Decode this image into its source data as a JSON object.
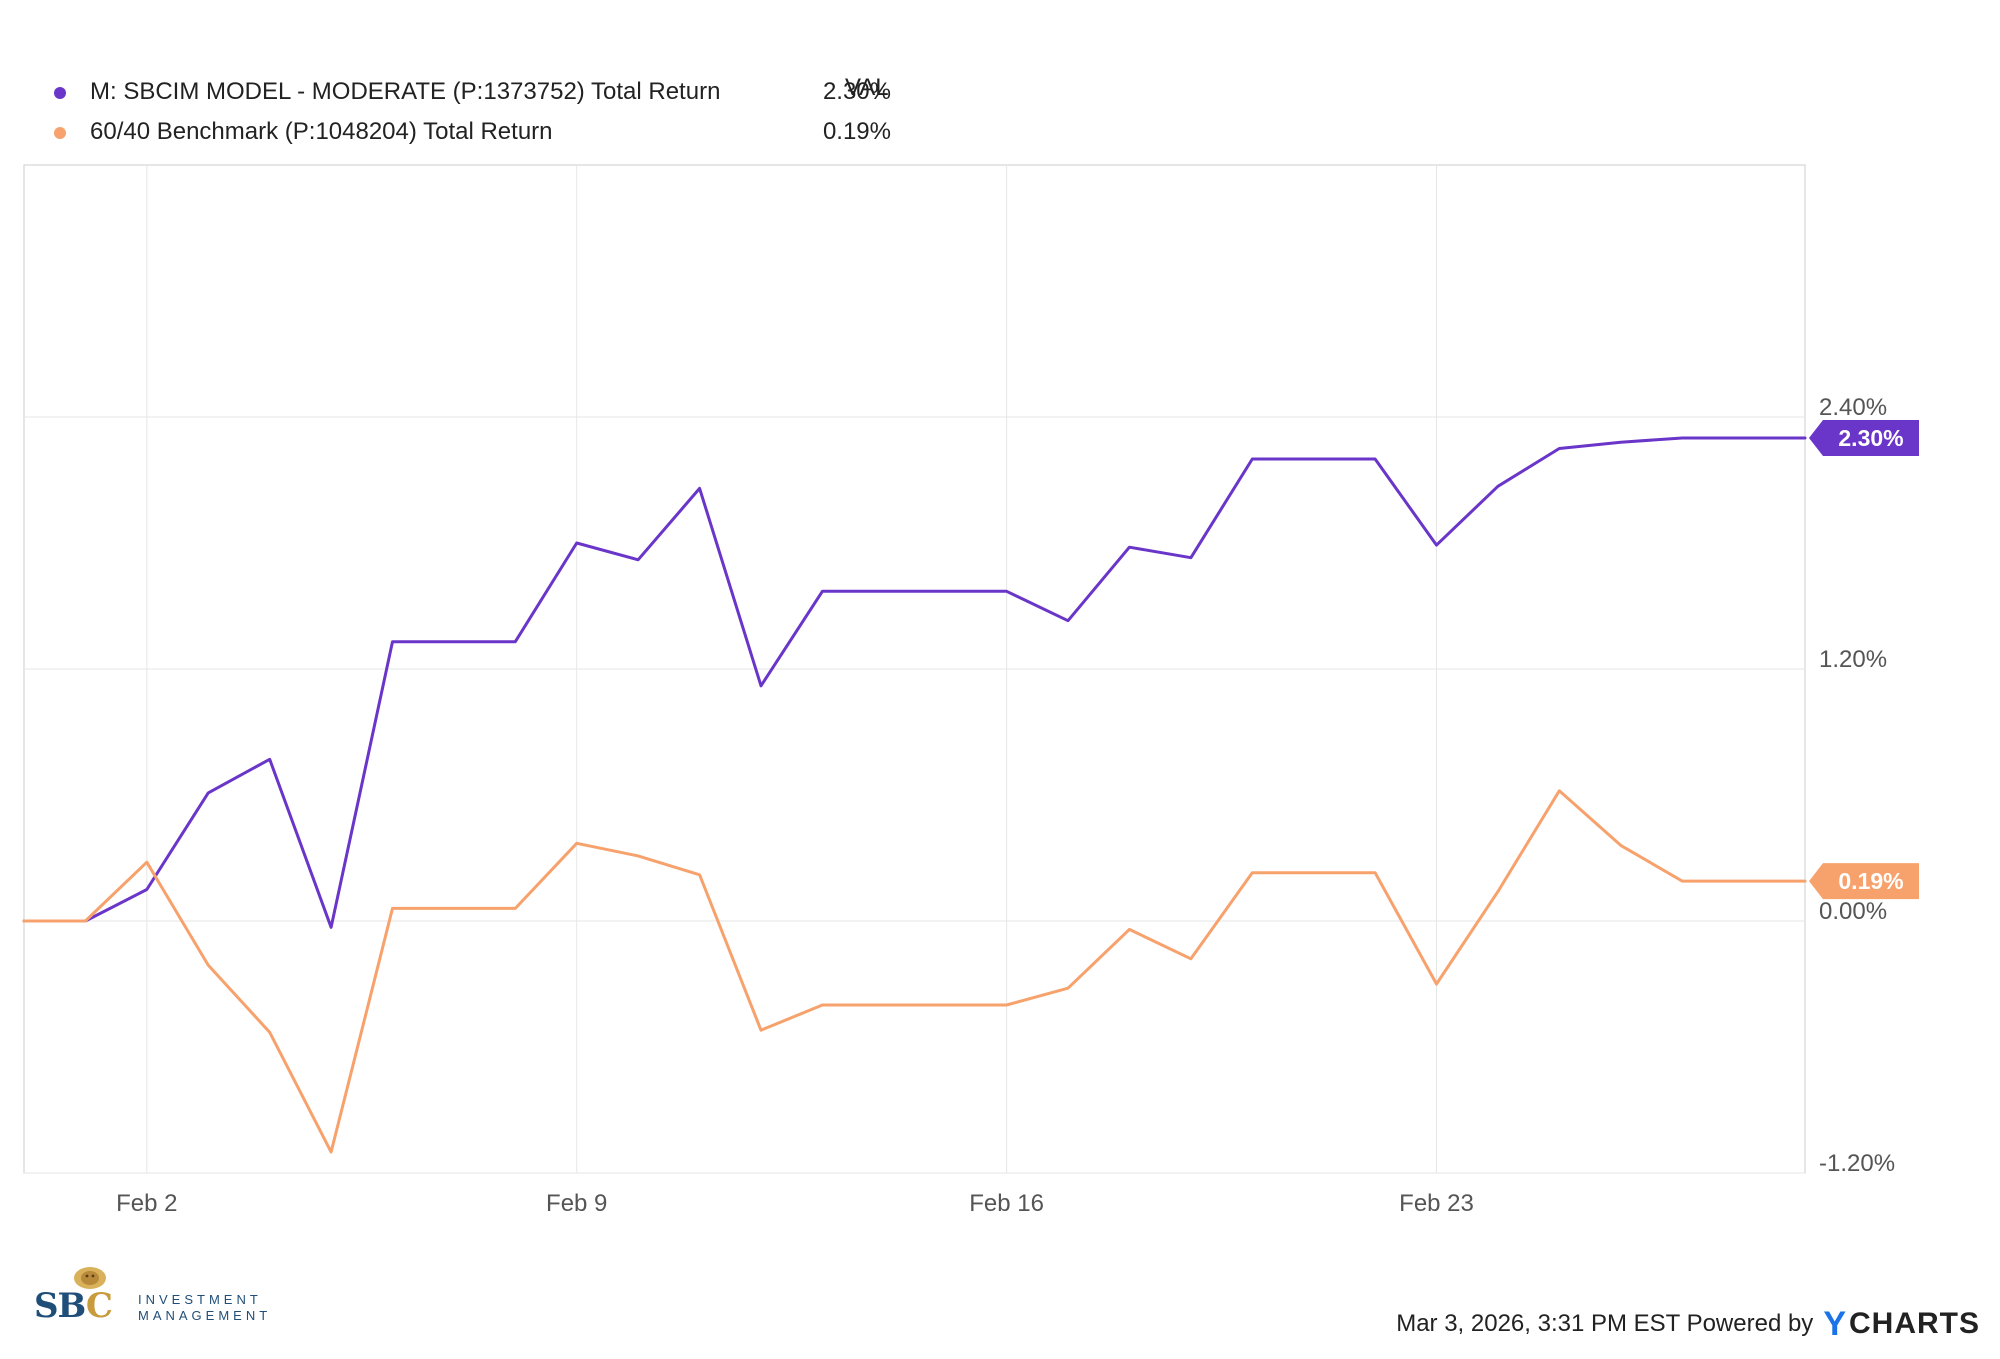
{
  "chart_data": {
    "type": "line",
    "x": [
      "Jan 29",
      "Jan 30",
      "Feb 2",
      "Feb 3",
      "Feb 4",
      "Feb 5",
      "Feb 6",
      "Feb 9 pre",
      "Feb 9 pre2",
      "Feb 9",
      "Feb 10",
      "Feb 11",
      "Feb 12",
      "Feb 13",
      "Feb 16 pre",
      "Feb 16 pre2",
      "Feb 16",
      "Feb 17",
      "Feb 18",
      "Feb 19",
      "Feb 20",
      "Feb 23 pre",
      "Feb 23 pre2",
      "Feb 23",
      "Feb 24",
      "Feb 25",
      "Feb 26",
      "Feb 27",
      "Mar 2 pre",
      "Mar 2"
    ],
    "x_ticks": [
      "Feb 2",
      "Feb 9",
      "Feb 16",
      "Feb 23"
    ],
    "series": [
      {
        "name": "M: SBCIM MODEL - MODERATE (P:1373752) Total Return",
        "color": "#6a35c9",
        "values": [
          0.0,
          0.0,
          0.15,
          0.61,
          0.77,
          -0.03,
          1.33,
          1.33,
          1.33,
          1.8,
          1.72,
          2.06,
          1.12,
          1.57,
          1.57,
          1.57,
          1.57,
          1.43,
          1.78,
          1.73,
          2.2,
          2.2,
          2.2,
          1.79,
          2.07,
          2.25,
          2.28,
          2.3,
          2.3,
          2.3
        ]
      },
      {
        "name": "60/40 Benchmark (P:1048204) Total Return",
        "color": "#f7a26d",
        "values": [
          0.0,
          0.0,
          0.28,
          -0.21,
          -0.53,
          -1.1,
          0.06,
          0.06,
          0.06,
          0.37,
          0.31,
          0.22,
          -0.52,
          -0.4,
          -0.4,
          -0.4,
          -0.4,
          -0.32,
          -0.04,
          -0.18,
          0.23,
          0.23,
          0.23,
          -0.3,
          0.14,
          0.62,
          0.36,
          0.19,
          0.19,
          0.19
        ]
      }
    ],
    "x_positions_are_trading_days": true,
    "y_ticks": [
      "2.40%",
      "1.20%",
      "0.00%",
      "-1.20%"
    ],
    "y_tick_values": [
      2.4,
      1.2,
      0.0,
      -1.2
    ],
    "ylim": [
      -1.2,
      3.6
    ],
    "grid": true,
    "legend_placement": "top-left"
  },
  "legend": {
    "column_header": "VAL",
    "rows": [
      {
        "name": "M: SBCIM MODEL - MODERATE (P:1373752) Total Return",
        "value": "2.30%",
        "color": "#6a35c9"
      },
      {
        "name": "60/40 Benchmark (P:1048204) Total Return",
        "value": "0.19%",
        "color": "#f7a26d"
      }
    ]
  },
  "end_labels": [
    {
      "text": "2.30%",
      "value": 2.3,
      "color": "#6a35c9"
    },
    {
      "text": "0.19%",
      "value": 0.19,
      "color": "#f7a26d"
    }
  ],
  "footer": {
    "timestamp": "Mar 3, 2026, 3:31 PM EST Powered by",
    "brand_y": "Y",
    "brand_rest": "CHARTS"
  },
  "logo": {
    "letters_a": "SB",
    "letters_b": "C",
    "line1": "INVESTMENT",
    "line2": "MANAGEMENT"
  }
}
